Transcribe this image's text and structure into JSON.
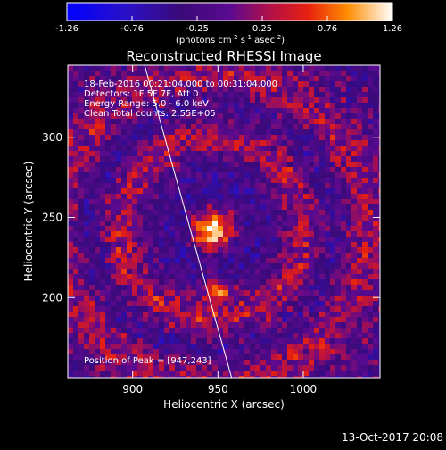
{
  "chart_data": {
    "type": "heatmap",
    "title": "Reconstructed RHESSI Image",
    "xlabel": "Heliocentric X (arcsec)",
    "ylabel": "Heliocentric Y (arcsec)",
    "xlim": [
      862,
      1045
    ],
    "ylim": [
      150,
      345
    ],
    "x_ticks": [
      900,
      950,
      1000
    ],
    "y_ticks": [
      200,
      250,
      300
    ],
    "annotations": [
      "18-Feb-2016 00:21:04.000 to 00:31:04.000",
      "Detectors: 1F 5F 7F, Att 0",
      "Energy Range: 5.0 - 6.0 keV",
      "Clean    Total counts: 2.55E+05"
    ],
    "peak_label": "Position of Peak = [947,243]",
    "peak_position": [
      947,
      243
    ],
    "secondary_source": [
      950,
      204
    ],
    "limb_line": [
      [
        907,
        345
      ],
      [
        958,
        150
      ]
    ],
    "colorbar": {
      "range": [
        -1.26,
        1.26
      ],
      "ticks": [
        "-1.26",
        "-0.76",
        "-0.25",
        "0.25",
        "0.76",
        "1.26"
      ],
      "unit_prefix": "(photons cm",
      "unit_exp1": "-2",
      "unit_mid1": " s",
      "unit_exp2": "-1",
      "unit_mid2": " asec",
      "unit_exp3": "-2",
      "unit_suffix": ")"
    },
    "footer_date": "13-Oct-2017 20:08"
  }
}
